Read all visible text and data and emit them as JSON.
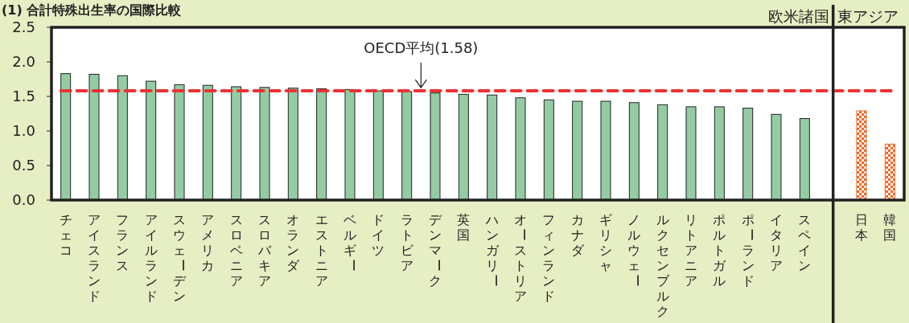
{
  "chart_data": {
    "type": "bar",
    "title": "(1) 合計特殊出生率の国際比較",
    "categories": [
      "チェコ",
      "アイスランド",
      "フランス",
      "アイルランド",
      "スウェーデン",
      "アメリカ",
      "スロベニア",
      "スロバキア",
      "オランダ",
      "エストニア",
      "ベルギー",
      "ドイツ",
      "ラトビア",
      "デンマーク",
      "英国",
      "ハンガリー",
      "オーストリア",
      "フィンランド",
      "カナダ",
      "ギリシャ",
      "ノルウェー",
      "ルクセンブルク",
      "リトアニア",
      "ポルトガル",
      "ポーランド",
      "イタリア",
      "スペイン",
      null,
      "日本",
      "韓国"
    ],
    "values": [
      1.83,
      1.82,
      1.8,
      1.72,
      1.67,
      1.66,
      1.64,
      1.63,
      1.62,
      1.61,
      1.6,
      1.58,
      1.57,
      1.55,
      1.53,
      1.52,
      1.48,
      1.45,
      1.43,
      1.43,
      1.41,
      1.38,
      1.35,
      1.35,
      1.33,
      1.24,
      1.18,
      null,
      1.29,
      0.81
    ],
    "colors": [
      "#93cca3",
      "#93cca3",
      "#93cca3",
      "#93cca3",
      "#93cca3",
      "#93cca3",
      "#93cca3",
      "#93cca3",
      "#93cca3",
      "#93cca3",
      "#93cca3",
      "#93cca3",
      "#93cca3",
      "#93cca3",
      "#93cca3",
      "#93cca3",
      "#93cca3",
      "#93cca3",
      "#93cca3",
      "#93cca3",
      "#93cca3",
      "#93cca3",
      "#93cca3",
      "#93cca3",
      "#93cca3",
      "#93cca3",
      "#93cca3",
      null,
      "#f26522",
      "#f26522"
    ],
    "ylim": [
      0,
      2.5
    ],
    "yticks": [
      {
        "value": 0,
        "label": "0.0"
      },
      0.5,
      {
        "value": 1,
        "label": "1.0"
      },
      1.5,
      {
        "value": 2,
        "label": "2.0"
      },
      2.5
    ],
    "ref_lines": [
      {
        "axis": "y",
        "value": 1.58,
        "label": "OECD平均(1.58)",
        "color": "#ee3333",
        "line_style": "dashed"
      }
    ],
    "annotations": [
      "欧米諸国",
      "東アジア"
    ]
  }
}
